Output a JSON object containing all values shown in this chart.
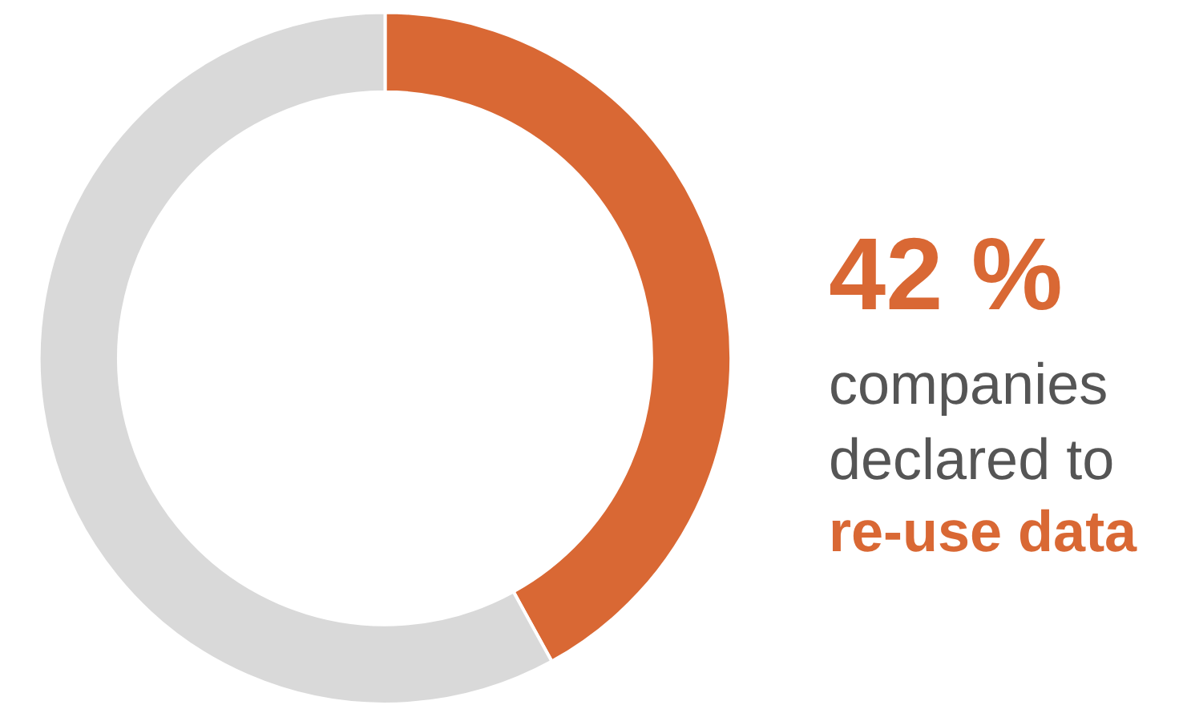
{
  "chart_data": {
    "type": "donut",
    "categories": [
      null,
      null
    ],
    "values": [
      42,
      58
    ],
    "colors": [
      "#d96834",
      "#d9d9d9"
    ],
    "annotations": [
      "42 %",
      "companies declared to",
      "re-use data"
    ]
  }
}
